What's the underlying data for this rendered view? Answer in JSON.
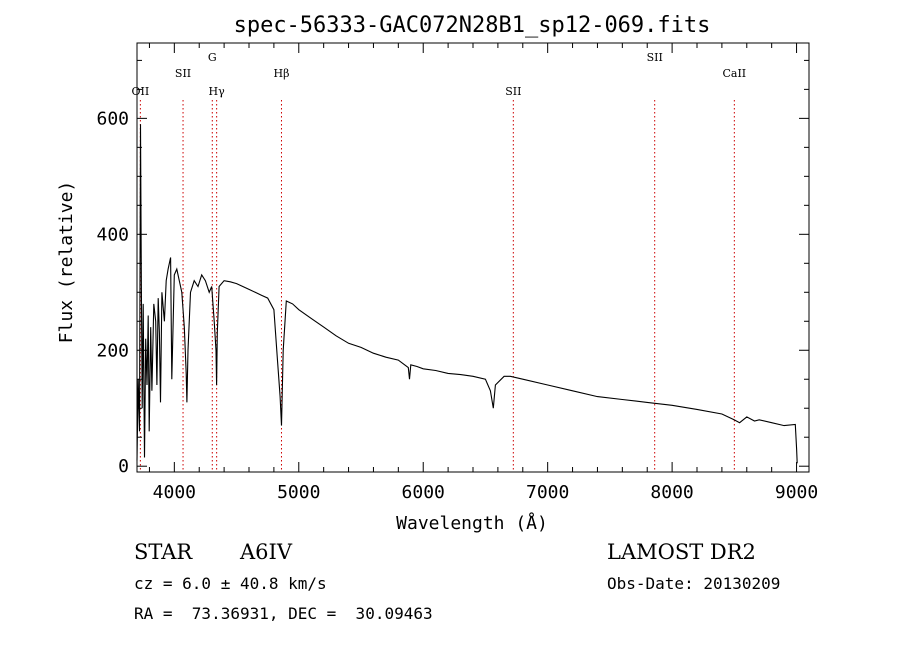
{
  "chart_data": {
    "type": "line",
    "title": "spec-56333-GAC072N28B1_sp12-069.fits",
    "xlabel": "Wavelength (Å)",
    "ylabel": "Flux (relative)",
    "xlim": [
      3700,
      9100
    ],
    "ylim": [
      -10,
      730
    ],
    "x_ticks": [
      4000,
      5000,
      6000,
      7000,
      8000,
      9000
    ],
    "y_ticks": [
      0,
      200,
      400,
      600
    ],
    "grid": false,
    "line_color": "#000000",
    "marker_color": "#cc0000",
    "series": [
      {
        "x": [
          3700,
          3710,
          3720,
          3728,
          3735,
          3742,
          3750,
          3760,
          3770,
          3780,
          3790,
          3798,
          3810,
          3820,
          3835,
          3850,
          3860,
          3870,
          3880,
          3889,
          3900,
          3920,
          3935,
          3950,
          3970,
          3980,
          4000,
          4020,
          4040,
          4060,
          4080,
          4095,
          4101,
          4110,
          4130,
          4160,
          4190,
          4220,
          4250,
          4280,
          4300,
          4320,
          4335,
          4340,
          4345,
          4360,
          4400,
          4450,
          4500,
          4550,
          4600,
          4650,
          4700,
          4750,
          4800,
          4830,
          4850,
          4861,
          4875,
          4900,
          4950,
          5000,
          5100,
          5200,
          5300,
          5400,
          5500,
          5600,
          5700,
          5800,
          5880,
          5890,
          5900,
          5950,
          6000,
          6100,
          6200,
          6300,
          6400,
          6500,
          6540,
          6563,
          6580,
          6650,
          6700,
          6800,
          7000,
          7200,
          7400,
          7600,
          7800,
          8000,
          8200,
          8400,
          8498,
          8542,
          8600,
          8662,
          8700,
          8800,
          8900,
          8990,
          9000,
          9005
        ],
        "y": [
          10,
          150,
          60,
          590,
          300,
          100,
          280,
          15,
          220,
          140,
          260,
          60,
          240,
          130,
          280,
          250,
          140,
          290,
          230,
          110,
          300,
          250,
          320,
          340,
          360,
          150,
          330,
          340,
          320,
          300,
          240,
          160,
          110,
          200,
          300,
          320,
          310,
          330,
          320,
          300,
          310,
          250,
          200,
          140,
          230,
          310,
          320,
          318,
          315,
          310,
          305,
          300,
          295,
          290,
          270,
          180,
          120,
          70,
          200,
          285,
          280,
          270,
          255,
          240,
          225,
          212,
          205,
          195,
          188,
          183,
          170,
          150,
          175,
          172,
          168,
          165,
          160,
          158,
          155,
          150,
          130,
          100,
          140,
          155,
          155,
          150,
          140,
          130,
          120,
          115,
          110,
          105,
          98,
          90,
          80,
          75,
          85,
          78,
          80,
          75,
          70,
          72,
          30,
          5
        ]
      }
    ],
    "line_markers": [
      {
        "label": "OII",
        "x": 3727
      },
      {
        "label": "SII",
        "x": 4070
      },
      {
        "label": "G",
        "x": 4305
      },
      {
        "label": "Hγ",
        "x": 4340
      },
      {
        "label": "Hβ",
        "x": 4861
      },
      {
        "label": "SII",
        "x": 6724
      },
      {
        "label": "SII",
        "x": 7860
      },
      {
        "label": "CaII",
        "x": 8500
      }
    ]
  },
  "info": {
    "object_class": "STAR",
    "subclass": "A6IV",
    "survey": "LAMOST DR2",
    "redshift_line": "cz = 6.0 ± 40.8 km/s",
    "obs_date_line": "Obs-Date: 20130209",
    "coords_line": "RA =  73.36931, DEC =  30.09463"
  }
}
